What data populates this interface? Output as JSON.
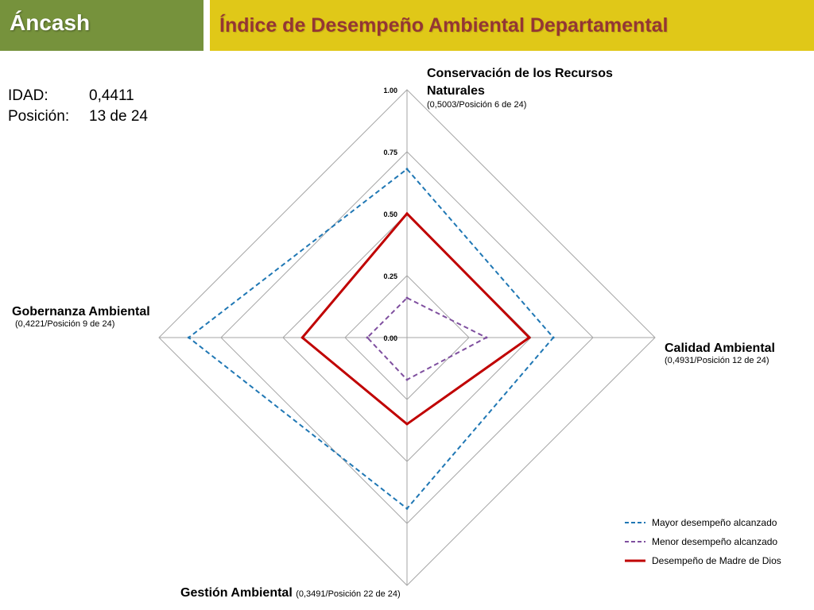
{
  "header": {
    "region": "Áncash",
    "title": "Índice de Desempeño Ambiental Departamental"
  },
  "summary": {
    "idad_label": "IDAD:",
    "idad_value": "0,4411",
    "position_label": "Posición:",
    "position_value": "13 de 24"
  },
  "axes": [
    {
      "name": "Conservación de los Recursos Naturales",
      "detail": "(0,5003/Posición 6 de 24)"
    },
    {
      "name": "Calidad Ambiental",
      "detail": "(0,4931/Posición 12 de 24)"
    },
    {
      "name": "Gestión Ambiental",
      "detail": "(0,3491/Posición 22 de 24)"
    },
    {
      "name": "Gobernanza Ambiental",
      "detail": "(0,4221/Posición 9 de 24)"
    }
  ],
  "legend": [
    {
      "label": "Mayor desempeño alcanzado"
    },
    {
      "label": "Menor desempeño alcanzado"
    },
    {
      "label": "Desempeño de Madre de Dios"
    }
  ],
  "chart_data": {
    "type": "radar",
    "axes": [
      "Conservación de los Recursos Naturales",
      "Calidad Ambiental",
      "Gestión Ambiental",
      "Gobernanza Ambiental"
    ],
    "rlim": [
      0,
      1
    ],
    "ticks": [
      "0.00",
      "0.25",
      "0.50",
      "0.75",
      "1.00"
    ],
    "series": [
      {
        "name": "Mayor desempeño alcanzado",
        "values": [
          0.68,
          0.59,
          0.69,
          0.88
        ],
        "color": "#1f77b4",
        "style": "dashed"
      },
      {
        "name": "Menor desempeño alcanzado",
        "values": [
          0.16,
          0.32,
          0.17,
          0.16
        ],
        "color": "#7f4f9f",
        "style": "dashed"
      },
      {
        "name": "Desempeño de Madre de Dios",
        "values": [
          0.5003,
          0.4931,
          0.3491,
          0.4221
        ],
        "color": "#c00000",
        "style": "solid"
      }
    ]
  }
}
